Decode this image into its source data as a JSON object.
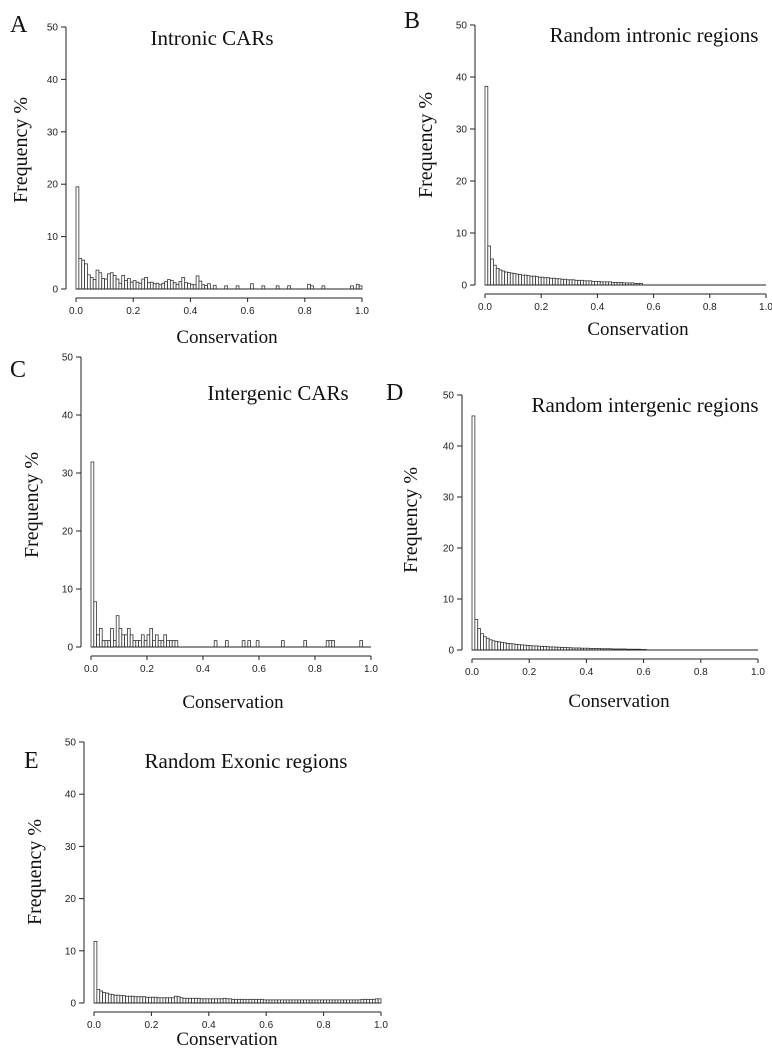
{
  "chart_data": [
    {
      "type": "bar",
      "panel": "A",
      "title": "Intronic CARs",
      "xlabel": "Conservation",
      "ylabel": "Frequency %",
      "xlim": [
        0,
        1.0
      ],
      "ylim": [
        0,
        50
      ],
      "xticks": [
        "0.0",
        "0.2",
        "0.4",
        "0.6",
        "0.8",
        "1.0"
      ],
      "yticks": [
        "0",
        "10",
        "20",
        "30",
        "40",
        "50"
      ],
      "bin_width": 0.01,
      "x": [
        0.0,
        0.01,
        0.02,
        0.03,
        0.04,
        0.05,
        0.06,
        0.07,
        0.08,
        0.09,
        0.1,
        0.11,
        0.12,
        0.13,
        0.14,
        0.15,
        0.16,
        0.17,
        0.18,
        0.19,
        0.2,
        0.21,
        0.22,
        0.23,
        0.24,
        0.25,
        0.26,
        0.27,
        0.28,
        0.29,
        0.3,
        0.31,
        0.32,
        0.33,
        0.34,
        0.35,
        0.36,
        0.37,
        0.38,
        0.39,
        0.4,
        0.41,
        0.42,
        0.43,
        0.44,
        0.45,
        0.46,
        0.48,
        0.52,
        0.56,
        0.61,
        0.65,
        0.7,
        0.74,
        0.81,
        0.82,
        0.86,
        0.96,
        0.98,
        0.99
      ],
      "values": [
        19.5,
        5.8,
        5.5,
        4.8,
        2.7,
        2.2,
        1.8,
        3.6,
        3.1,
        2.0,
        1.9,
        2.9,
        3.1,
        2.6,
        1.9,
        1.1,
        2.6,
        1.6,
        2.0,
        1.3,
        1.6,
        1.3,
        1.1,
        1.9,
        2.2,
        1.2,
        1.3,
        1.0,
        1.1,
        0.8,
        1.1,
        1.4,
        1.8,
        1.6,
        1.2,
        0.9,
        1.4,
        2.2,
        1.2,
        1.1,
        0.9,
        0.8,
        2.5,
        1.5,
        0.8,
        0.7,
        1.0,
        0.7,
        0.6,
        0.6,
        1.0,
        0.6,
        0.6,
        0.6,
        0.9,
        0.6,
        0.6,
        0.6,
        0.9,
        0.6
      ]
    },
    {
      "type": "bar",
      "panel": "B",
      "title": "Random intronic regions",
      "xlabel": "Conservation",
      "ylabel": "Frequency %",
      "xlim": [
        0,
        1.0
      ],
      "ylim": [
        0,
        50
      ],
      "xticks": [
        "0.0",
        "0.2",
        "0.4",
        "0.6",
        "0.8",
        "1.0"
      ],
      "yticks": [
        "0",
        "10",
        "20",
        "30",
        "40",
        "50"
      ],
      "bin_width": 0.01,
      "x": [
        0.0,
        0.01,
        0.02,
        0.03,
        0.04,
        0.05,
        0.06,
        0.07,
        0.08,
        0.09,
        0.1,
        0.11,
        0.12,
        0.13,
        0.14,
        0.15,
        0.16,
        0.17,
        0.18,
        0.19,
        0.2,
        0.21,
        0.22,
        0.23,
        0.24,
        0.25,
        0.26,
        0.27,
        0.28,
        0.29,
        0.3,
        0.31,
        0.32,
        0.33,
        0.34,
        0.35,
        0.36,
        0.37,
        0.38,
        0.39,
        0.4,
        0.41,
        0.42,
        0.43,
        0.44,
        0.45,
        0.46,
        0.47,
        0.48,
        0.49,
        0.5,
        0.51,
        0.52,
        0.53,
        0.54,
        0.55
      ],
      "values": [
        38.2,
        7.5,
        5.0,
        3.8,
        3.2,
        2.9,
        2.7,
        2.5,
        2.4,
        2.3,
        2.2,
        2.1,
        2.0,
        1.9,
        1.9,
        1.8,
        1.7,
        1.7,
        1.6,
        1.5,
        1.5,
        1.4,
        1.4,
        1.3,
        1.3,
        1.2,
        1.2,
        1.1,
        1.1,
        1.0,
        1.0,
        1.0,
        0.9,
        0.9,
        0.9,
        0.8,
        0.8,
        0.8,
        0.7,
        0.7,
        0.7,
        0.6,
        0.6,
        0.6,
        0.6,
        0.5,
        0.5,
        0.5,
        0.5,
        0.4,
        0.4,
        0.4,
        0.4,
        0.3,
        0.3,
        0.3
      ]
    },
    {
      "type": "bar",
      "panel": "C",
      "title": "Intergenic CARs",
      "xlabel": "Conservation",
      "ylabel": "Frequency %",
      "xlim": [
        0,
        1.0
      ],
      "ylim": [
        0,
        50
      ],
      "xticks": [
        "0.0",
        "0.2",
        "0.4",
        "0.6",
        "0.8",
        "1.0"
      ],
      "yticks": [
        "0",
        "10",
        "20",
        "30",
        "40",
        "50"
      ],
      "bin_width": 0.01,
      "x": [
        0.0,
        0.01,
        0.02,
        0.03,
        0.04,
        0.05,
        0.06,
        0.07,
        0.08,
        0.09,
        0.1,
        0.11,
        0.12,
        0.13,
        0.14,
        0.15,
        0.16,
        0.17,
        0.18,
        0.19,
        0.2,
        0.21,
        0.22,
        0.23,
        0.24,
        0.25,
        0.26,
        0.27,
        0.28,
        0.29,
        0.3,
        0.44,
        0.48,
        0.54,
        0.56,
        0.59,
        0.68,
        0.76,
        0.84,
        0.85,
        0.86,
        0.96
      ],
      "values": [
        31.9,
        7.8,
        2.1,
        3.2,
        1.1,
        1.1,
        1.1,
        3.2,
        1.1,
        5.4,
        3.2,
        2.1,
        2.1,
        3.2,
        2.1,
        1.1,
        1.1,
        1.1,
        2.1,
        1.1,
        2.1,
        3.2,
        1.1,
        2.1,
        1.1,
        1.1,
        2.1,
        1.1,
        1.1,
        1.1,
        1.1,
        1.1,
        1.1,
        1.1,
        1.1,
        1.1,
        1.1,
        1.1,
        1.1,
        1.1,
        1.1,
        1.1
      ]
    },
    {
      "type": "bar",
      "panel": "D",
      "title": "Random intergenic regions",
      "xlabel": "Conservation",
      "ylabel": "Frequency %",
      "xlim": [
        0,
        1.0
      ],
      "ylim": [
        0,
        50
      ],
      "xticks": [
        "0.0",
        "0.2",
        "0.4",
        "0.6",
        "0.8",
        "1.0"
      ],
      "yticks": [
        "0",
        "10",
        "20",
        "30",
        "40",
        "50"
      ],
      "bin_width": 0.01,
      "x": [
        0.0,
        0.01,
        0.02,
        0.03,
        0.04,
        0.05,
        0.06,
        0.07,
        0.08,
        0.09,
        0.1,
        0.11,
        0.12,
        0.13,
        0.14,
        0.15,
        0.16,
        0.17,
        0.18,
        0.19,
        0.2,
        0.21,
        0.22,
        0.23,
        0.24,
        0.25,
        0.26,
        0.27,
        0.28,
        0.29,
        0.3,
        0.31,
        0.32,
        0.33,
        0.34,
        0.35,
        0.36,
        0.37,
        0.38,
        0.39,
        0.4,
        0.41,
        0.42,
        0.43,
        0.44,
        0.45,
        0.46,
        0.47,
        0.48,
        0.49,
        0.5,
        0.51,
        0.52,
        0.53,
        0.54,
        0.55,
        0.56,
        0.57,
        0.58,
        0.59,
        0.6
      ],
      "values": [
        45.9,
        6.0,
        4.2,
        3.2,
        2.6,
        2.3,
        2.0,
        1.8,
        1.7,
        1.6,
        1.5,
        1.4,
        1.3,
        1.25,
        1.2,
        1.1,
        1.05,
        1.0,
        0.95,
        0.9,
        0.85,
        0.8,
        0.8,
        0.75,
        0.7,
        0.7,
        0.65,
        0.6,
        0.6,
        0.55,
        0.55,
        0.5,
        0.5,
        0.45,
        0.45,
        0.4,
        0.4,
        0.4,
        0.35,
        0.35,
        0.35,
        0.3,
        0.3,
        0.3,
        0.3,
        0.25,
        0.25,
        0.25,
        0.25,
        0.2,
        0.2,
        0.2,
        0.2,
        0.2,
        0.15,
        0.15,
        0.15,
        0.15,
        0.15,
        0.1,
        0.1
      ]
    },
    {
      "type": "bar",
      "panel": "E",
      "title": "Random Exonic regions",
      "xlabel": "Conservation",
      "ylabel": "Frequency %",
      "xlim": [
        0,
        1.0
      ],
      "ylim": [
        0,
        50
      ],
      "xticks": [
        "0.0",
        "0.2",
        "0.4",
        "0.6",
        "0.8",
        "1.0"
      ],
      "yticks": [
        "0",
        "10",
        "20",
        "30",
        "40",
        "50"
      ],
      "bin_width": 0.01,
      "x": [
        0.0,
        0.01,
        0.02,
        0.03,
        0.04,
        0.05,
        0.06,
        0.07,
        0.08,
        0.09,
        0.1,
        0.11,
        0.12,
        0.13,
        0.14,
        0.15,
        0.16,
        0.17,
        0.18,
        0.19,
        0.2,
        0.21,
        0.22,
        0.23,
        0.24,
        0.25,
        0.26,
        0.27,
        0.28,
        0.29,
        0.3,
        0.31,
        0.32,
        0.33,
        0.34,
        0.35,
        0.36,
        0.37,
        0.38,
        0.39,
        0.4,
        0.41,
        0.42,
        0.43,
        0.44,
        0.45,
        0.46,
        0.47,
        0.48,
        0.49,
        0.5,
        0.51,
        0.52,
        0.53,
        0.54,
        0.55,
        0.56,
        0.57,
        0.58,
        0.59,
        0.6,
        0.61,
        0.62,
        0.63,
        0.64,
        0.65,
        0.66,
        0.67,
        0.68,
        0.69,
        0.7,
        0.71,
        0.72,
        0.73,
        0.74,
        0.75,
        0.76,
        0.77,
        0.78,
        0.79,
        0.8,
        0.81,
        0.82,
        0.83,
        0.84,
        0.85,
        0.86,
        0.87,
        0.88,
        0.89,
        0.9,
        0.91,
        0.92,
        0.93,
        0.94,
        0.95,
        0.96,
        0.97,
        0.98,
        0.99
      ],
      "values": [
        11.8,
        2.6,
        2.3,
        2.0,
        1.9,
        1.7,
        1.6,
        1.5,
        1.5,
        1.4,
        1.4,
        1.3,
        1.3,
        1.3,
        1.2,
        1.2,
        1.2,
        1.2,
        1.1,
        1.1,
        1.1,
        1.1,
        1.0,
        1.0,
        1.0,
        1.0,
        1.0,
        1.0,
        1.3,
        1.2,
        1.0,
        0.9,
        0.9,
        0.9,
        0.9,
        0.9,
        0.9,
        0.8,
        0.8,
        0.8,
        0.8,
        0.8,
        0.8,
        0.8,
        0.8,
        0.9,
        0.8,
        0.8,
        0.7,
        0.7,
        0.7,
        0.7,
        0.7,
        0.7,
        0.7,
        0.7,
        0.7,
        0.7,
        0.7,
        0.6,
        0.6,
        0.6,
        0.6,
        0.6,
        0.6,
        0.6,
        0.6,
        0.6,
        0.6,
        0.6,
        0.6,
        0.6,
        0.6,
        0.6,
        0.6,
        0.6,
        0.6,
        0.6,
        0.6,
        0.6,
        0.6,
        0.6,
        0.6,
        0.6,
        0.6,
        0.6,
        0.6,
        0.6,
        0.6,
        0.6,
        0.6,
        0.6,
        0.6,
        0.7,
        0.7,
        0.7,
        0.7,
        0.7,
        0.8,
        0.8
      ]
    }
  ]
}
